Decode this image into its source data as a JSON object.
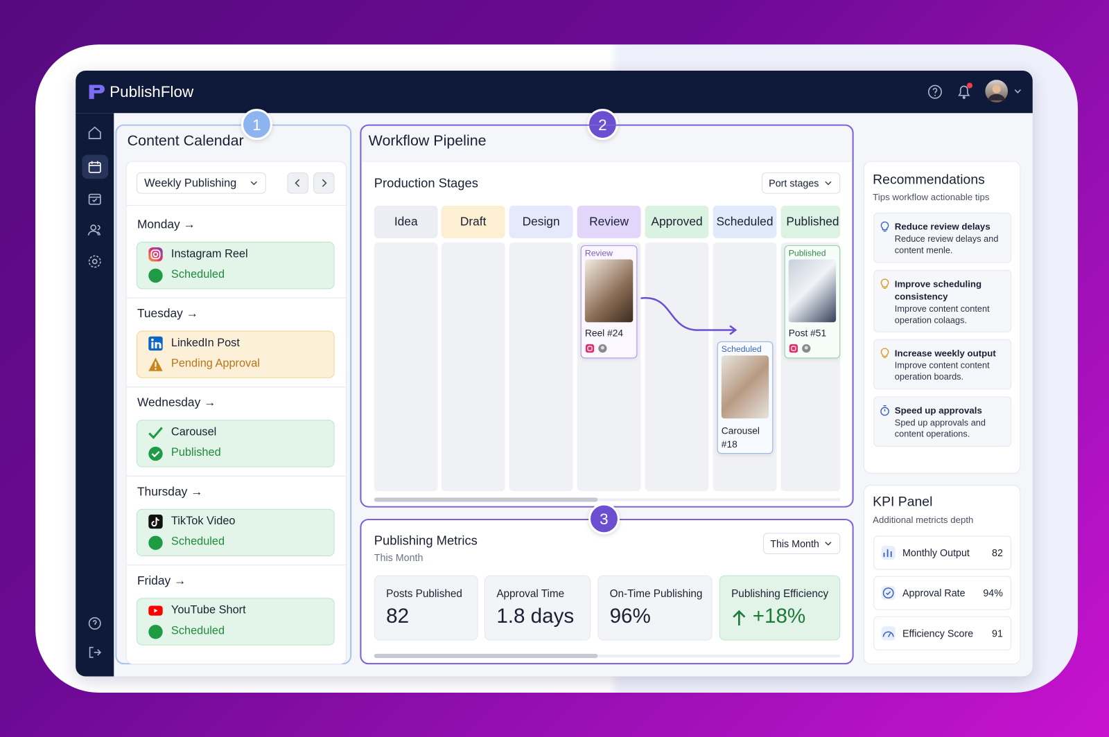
{
  "header": {
    "brand": "PublishFlow"
  },
  "badges": [
    "1",
    "2",
    "3"
  ],
  "calendar": {
    "title": "Content Calendar",
    "filter": "Weekly Publishing",
    "days": [
      {
        "day": "Monday →",
        "name": "Instagram Reel",
        "status": "Scheduled"
      },
      {
        "day": "Tuesday →",
        "name": "LinkedIn Post",
        "status": "Pending Approval"
      },
      {
        "day": "Wednesday →",
        "name": "Carousel",
        "status": "Published"
      },
      {
        "day": "Thursday →",
        "name": "TikTok Video",
        "status": "Scheduled"
      },
      {
        "day": "Friday →",
        "name": "YouTube Short",
        "status": "Scheduled"
      }
    ]
  },
  "pipeline": {
    "title": "Workflow Pipeline",
    "section": "Production Stages",
    "filter": "Port stages",
    "stages": [
      "Idea",
      "Draft",
      "Design",
      "Review",
      "Approved",
      "Scheduled",
      "Published"
    ],
    "cards": [
      {
        "tag": "Review",
        "label": "Reel #24"
      },
      {
        "tag": "Scheduled",
        "label": "Carousel #18"
      },
      {
        "tag": "Published",
        "label": "Post #51"
      }
    ]
  },
  "metrics": {
    "title": "Publishing Metrics",
    "subtitle": "This Month",
    "filter": "This Month",
    "cards": [
      {
        "label": "Posts Published",
        "value": "82"
      },
      {
        "label": "Approval Time",
        "value": "1.8 days"
      },
      {
        "label": "On-Time Publishing",
        "value": "96%"
      },
      {
        "label": "Publishing Efficiency",
        "value": "+18%"
      }
    ]
  },
  "recommendations": {
    "title": "Recommendations",
    "subtitle": "Tips workflow actionable tips",
    "tips": [
      {
        "title": "Reduce review delays",
        "text": "Reduce review delays and content menle."
      },
      {
        "title": "Improve scheduling consistency",
        "text": "Improve content content operation colaags."
      },
      {
        "title": "Increase weekly output",
        "text": "Improve content content operation boards."
      },
      {
        "title": "Speed up approvals",
        "text": "Sped up approvals and content operations."
      }
    ]
  },
  "kpi": {
    "title": "KPI Panel",
    "subtitle": "Additional metricts depth",
    "items": [
      {
        "label": "Monthly Output",
        "value": "82"
      },
      {
        "label": "Approval Rate",
        "value": "94%"
      },
      {
        "label": "Efficiency Score",
        "value": "91"
      }
    ]
  }
}
